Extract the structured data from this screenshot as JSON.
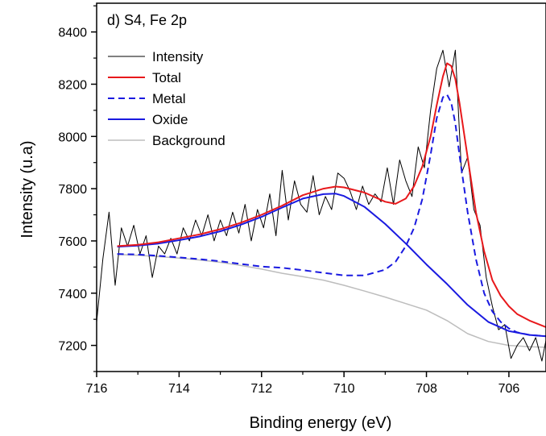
{
  "chart_data": {
    "type": "line",
    "title": "d) S4, Fe 2p",
    "xlabel": "Binding energy (eV)",
    "ylabel": "Intensity (u.a)",
    "xlim": [
      716,
      705.1
    ],
    "ylim": [
      7100,
      8510
    ],
    "x_reversed": true,
    "x_ticks": [
      716,
      714,
      712,
      710,
      708,
      706
    ],
    "x_tick_labels": [
      "716",
      "714",
      "712",
      "710",
      "708",
      "706"
    ],
    "y_ticks": [
      7200,
      7400,
      7600,
      7800,
      8000,
      8200,
      8400
    ],
    "y_tick_labels": [
      "7200",
      "7400",
      "7600",
      "7800",
      "8000",
      "8200",
      "8400"
    ],
    "grid": false,
    "legend_position": "top-left",
    "series": [
      {
        "name": "Intensity",
        "color": "#000000",
        "style": "solid",
        "width": 1,
        "x": [
          716.0,
          715.85,
          715.7,
          715.55,
          715.4,
          715.25,
          715.1,
          714.95,
          714.8,
          714.65,
          714.5,
          714.35,
          714.2,
          714.05,
          713.9,
          713.75,
          713.6,
          713.45,
          713.3,
          713.15,
          713.0,
          712.85,
          712.7,
          712.55,
          712.4,
          712.25,
          712.1,
          711.95,
          711.8,
          711.65,
          711.5,
          711.35,
          711.2,
          711.05,
          710.9,
          710.75,
          710.6,
          710.45,
          710.3,
          710.15,
          710.0,
          709.85,
          709.7,
          709.55,
          709.4,
          709.25,
          709.1,
          708.95,
          708.8,
          708.65,
          708.5,
          708.35,
          708.2,
          708.05,
          707.9,
          707.75,
          707.6,
          707.45,
          707.3,
          707.15,
          707.0,
          706.85,
          706.7,
          706.55,
          706.4,
          706.25,
          706.1,
          705.95,
          705.8,
          705.65,
          705.5,
          705.35,
          705.2,
          705.1
        ],
        "y": [
          7290,
          7530,
          7710,
          7430,
          7650,
          7580,
          7660,
          7550,
          7620,
          7460,
          7580,
          7550,
          7610,
          7550,
          7650,
          7600,
          7680,
          7620,
          7700,
          7600,
          7680,
          7620,
          7710,
          7630,
          7740,
          7600,
          7720,
          7650,
          7780,
          7620,
          7870,
          7680,
          7830,
          7740,
          7710,
          7850,
          7700,
          7770,
          7720,
          7860,
          7840,
          7790,
          7720,
          7810,
          7740,
          7780,
          7750,
          7880,
          7740,
          7910,
          7830,
          7770,
          7960,
          7880,
          8100,
          8260,
          8330,
          8190,
          8330,
          7860,
          7920,
          7720,
          7660,
          7460,
          7350,
          7260,
          7280,
          7150,
          7200,
          7230,
          7180,
          7230,
          7140,
          7220
        ]
      },
      {
        "name": "Total",
        "color": "#e8191c",
        "style": "solid",
        "width": 2,
        "x": [
          715.5,
          715.0,
          714.5,
          714.0,
          713.5,
          713.0,
          712.5,
          712.0,
          711.5,
          711.0,
          710.5,
          710.2,
          710.0,
          709.5,
          709.0,
          708.75,
          708.5,
          708.3,
          708.1,
          707.9,
          707.75,
          707.6,
          707.5,
          707.4,
          707.3,
          707.2,
          707.0,
          706.8,
          706.6,
          706.4,
          706.2,
          706.0,
          705.8,
          705.5,
          705.1
        ],
        "y": [
          7580,
          7585,
          7595,
          7610,
          7625,
          7645,
          7670,
          7700,
          7735,
          7775,
          7800,
          7808,
          7805,
          7785,
          7750,
          7742,
          7762,
          7810,
          7885,
          8000,
          8120,
          8230,
          8280,
          8270,
          8220,
          8130,
          7920,
          7710,
          7560,
          7450,
          7390,
          7350,
          7320,
          7295,
          7270
        ]
      },
      {
        "name": "Metal",
        "color": "#1a1ae0",
        "style": "dashed",
        "width": 2,
        "x": [
          715.5,
          715.0,
          714.5,
          714.0,
          713.5,
          713.0,
          712.5,
          712.0,
          711.5,
          711.0,
          710.5,
          710.0,
          709.5,
          709.0,
          708.75,
          708.5,
          708.3,
          708.1,
          707.9,
          707.75,
          707.6,
          707.5,
          707.4,
          707.3,
          707.2,
          707.0,
          706.8,
          706.6,
          706.4,
          706.2,
          706.0,
          705.8,
          705.5,
          705.1
        ],
        "y": [
          7550,
          7548,
          7543,
          7537,
          7530,
          7522,
          7512,
          7502,
          7497,
          7488,
          7478,
          7468,
          7468,
          7490,
          7520,
          7580,
          7650,
          7760,
          7930,
          8070,
          8150,
          8160,
          8130,
          8050,
          7930,
          7710,
          7530,
          7400,
          7330,
          7290,
          7265,
          7250,
          7240,
          7235
        ]
      },
      {
        "name": "Oxide",
        "color": "#1a1ae0",
        "style": "solid",
        "width": 2,
        "x": [
          715.5,
          715.0,
          714.5,
          714.0,
          713.5,
          713.0,
          712.5,
          712.0,
          711.5,
          711.0,
          710.5,
          710.2,
          710.0,
          709.5,
          709.0,
          708.5,
          708.0,
          707.5,
          707.0,
          706.5,
          706.0,
          705.5,
          705.1
        ],
        "y": [
          7578,
          7582,
          7590,
          7603,
          7617,
          7637,
          7662,
          7692,
          7728,
          7762,
          7779,
          7781,
          7772,
          7730,
          7665,
          7590,
          7510,
          7435,
          7355,
          7290,
          7255,
          7240,
          7235
        ]
      },
      {
        "name": "Background",
        "color": "#bdbdbd",
        "style": "solid",
        "width": 1.5,
        "x": [
          715.5,
          715.0,
          714.5,
          714.0,
          713.5,
          713.0,
          712.5,
          712.0,
          711.5,
          711.0,
          710.5,
          710.0,
          709.5,
          709.0,
          708.5,
          708.0,
          707.5,
          707.0,
          706.5,
          706.0,
          705.5,
          705.1
        ],
        "y": [
          7548,
          7545,
          7540,
          7534,
          7527,
          7518,
          7506,
          7492,
          7476,
          7463,
          7450,
          7430,
          7408,
          7385,
          7360,
          7335,
          7295,
          7245,
          7215,
          7200,
          7195,
          7193
        ]
      }
    ]
  }
}
